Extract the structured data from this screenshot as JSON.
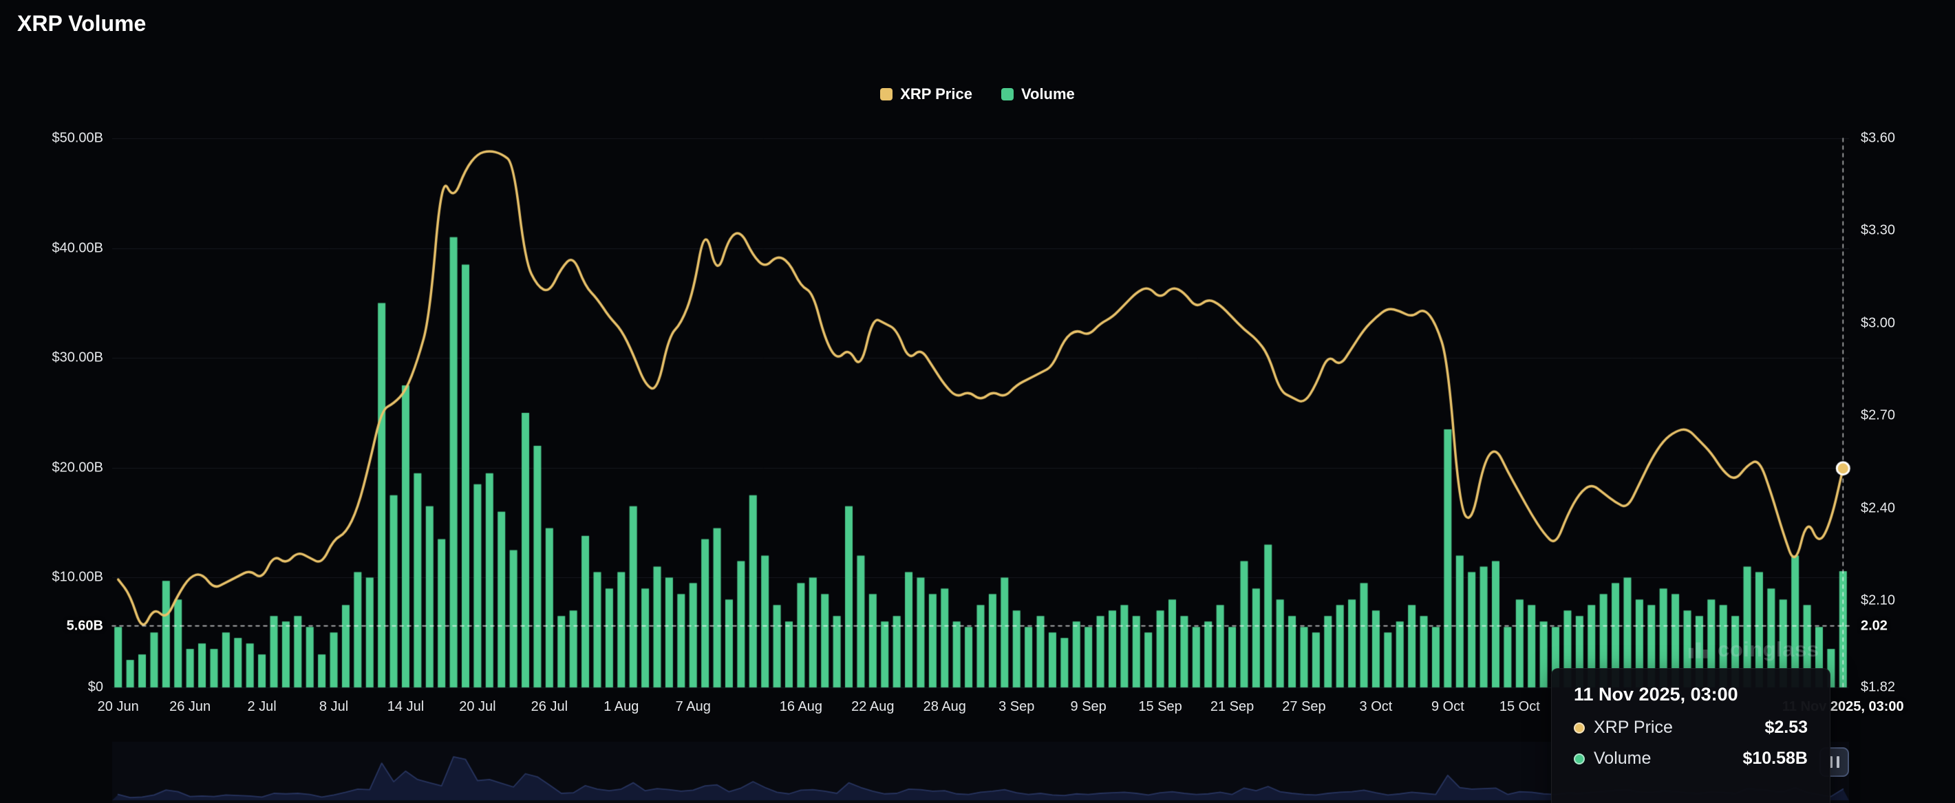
{
  "page": {
    "title": "XRP Volume",
    "background": "#050609"
  },
  "legend": {
    "items": [
      {
        "label": "XRP Price",
        "color": "#e9c26a"
      },
      {
        "label": "Volume",
        "color": "#4ccb8d"
      }
    ]
  },
  "watermark": {
    "text": "coinglass"
  },
  "tooltip": {
    "title": "11 Nov 2025, 03:00",
    "rows": [
      {
        "label": "XRP Price",
        "value": "$2.53",
        "color": "#e9c26a"
      },
      {
        "label": "Volume",
        "value": "$10.58B",
        "color": "#4ccb8d"
      }
    ]
  },
  "chart_data": {
    "type": "combo",
    "title": "XRP Volume",
    "legend_position": "top-center",
    "grid": true,
    "x": {
      "start": "20 Jun 2025",
      "end": "11 Nov 2025, 03:00",
      "interval": "daily",
      "count": 145
    },
    "x_tick_labels": [
      "20 Jun",
      "26 Jun",
      "2 Jul",
      "8 Jul",
      "14 Jul",
      "20 Jul",
      "26 Jul",
      "1 Aug",
      "7 Aug",
      "16 Aug",
      "22 Aug",
      "28 Aug",
      "3 Sep",
      "9 Sep",
      "15 Sep",
      "21 Sep",
      "27 Sep",
      "3 Oct",
      "9 Oct",
      "15 Oct"
    ],
    "x_tick_day_offsets": [
      0,
      6,
      12,
      18,
      24,
      30,
      36,
      42,
      48,
      57,
      63,
      69,
      75,
      81,
      87,
      93,
      99,
      105,
      111,
      117
    ],
    "left_axis": {
      "ticks": [
        "$0",
        "$10.00B",
        "$20.00B",
        "$30.00B",
        "$40.00B",
        "$50.00B"
      ],
      "tick_values": [
        0,
        10,
        20,
        30,
        40,
        50
      ],
      "min": 0,
      "max": 50,
      "unit": "USD billions"
    },
    "right_axis": {
      "ticks": [
        "$1.82",
        "$2.10",
        "$2.40",
        "$2.70",
        "$3.00",
        "$3.30",
        "$3.60"
      ],
      "tick_values": [
        1.82,
        2.1,
        2.4,
        2.7,
        3.0,
        3.3,
        3.6
      ],
      "min": 1.82,
      "max": 3.6,
      "unit": "USD"
    },
    "series": [
      {
        "name": "XRP Price",
        "type": "line",
        "axis": "right",
        "color": "#e9c26a",
        "values": [
          2.17,
          2.12,
          2.0,
          2.08,
          2.04,
          2.12,
          2.18,
          2.19,
          2.14,
          2.16,
          2.18,
          2.2,
          2.17,
          2.25,
          2.22,
          2.26,
          2.24,
          2.22,
          2.3,
          2.32,
          2.4,
          2.55,
          2.72,
          2.74,
          2.78,
          2.88,
          3.02,
          3.48,
          3.4,
          3.5,
          3.55,
          3.56,
          3.55,
          3.52,
          3.2,
          3.12,
          3.1,
          3.18,
          3.22,
          3.12,
          3.08,
          3.02,
          2.98,
          2.9,
          2.8,
          2.78,
          2.96,
          3.0,
          3.1,
          3.32,
          3.15,
          3.28,
          3.3,
          3.22,
          3.18,
          3.22,
          3.2,
          3.12,
          3.1,
          2.95,
          2.88,
          2.92,
          2.85,
          3.02,
          3.0,
          2.98,
          2.88,
          2.92,
          2.86,
          2.8,
          2.76,
          2.78,
          2.75,
          2.78,
          2.76,
          2.8,
          2.82,
          2.84,
          2.86,
          2.95,
          2.98,
          2.96,
          3.0,
          3.02,
          3.06,
          3.1,
          3.12,
          3.08,
          3.12,
          3.1,
          3.05,
          3.08,
          3.06,
          3.02,
          2.98,
          2.95,
          2.9,
          2.78,
          2.76,
          2.74,
          2.8,
          2.9,
          2.86,
          2.92,
          2.98,
          3.02,
          3.05,
          3.04,
          3.02,
          3.05,
          3.0,
          2.88,
          2.4,
          2.35,
          2.55,
          2.6,
          2.52,
          2.45,
          2.38,
          2.32,
          2.28,
          2.38,
          2.45,
          2.48,
          2.45,
          2.42,
          2.4,
          2.48,
          2.56,
          2.62,
          2.65,
          2.66,
          2.62,
          2.58,
          2.52,
          2.49,
          2.54,
          2.56,
          2.45,
          2.32,
          2.21,
          2.37,
          2.28,
          2.36,
          2.53
        ]
      },
      {
        "name": "Volume",
        "type": "bar",
        "axis": "left",
        "color": "#4ccb8d",
        "values": [
          5.5,
          2.5,
          3,
          5,
          9.7,
          8,
          3.5,
          4,
          3.5,
          5,
          4.5,
          4,
          3,
          6.5,
          6,
          6.5,
          5.5,
          3,
          5,
          7.5,
          10.5,
          10,
          35,
          17.5,
          27.5,
          19.5,
          16.5,
          13.5,
          41,
          38.5,
          18.5,
          19.5,
          16,
          12.5,
          25,
          22,
          14.5,
          6.5,
          7,
          13.8,
          10.5,
          9,
          10.5,
          16.5,
          9,
          11,
          10,
          8.5,
          9.5,
          13.5,
          14.5,
          8,
          11.5,
          17.5,
          12,
          7.5,
          6,
          9.5,
          10,
          8.5,
          6.5,
          16.5,
          12,
          8.5,
          6,
          6.5,
          10.5,
          10,
          8.5,
          9,
          6,
          5.5,
          7.5,
          8.5,
          10,
          7,
          5.5,
          6.5,
          5,
          4.5,
          6,
          5.5,
          6.5,
          7,
          7.5,
          6.5,
          5,
          7,
          8,
          6.5,
          5.5,
          6,
          7.5,
          5.5,
          11.5,
          9,
          13,
          8,
          6.5,
          5.5,
          5,
          6.5,
          7.5,
          8,
          9.5,
          7,
          5,
          6,
          7.5,
          6.5,
          5.5,
          23.5,
          12,
          10.5,
          11,
          11.5,
          5.5,
          8,
          7.5,
          6,
          5.5,
          7,
          6.5,
          7.5,
          8.5,
          9.5,
          10,
          8,
          7.5,
          9,
          8.5,
          7,
          6.5,
          8,
          7.5,
          6.5,
          11,
          10.5,
          9,
          8,
          12,
          7.5,
          5.5,
          3.5,
          10.58
        ]
      }
    ],
    "crosshair": {
      "x_label": "11 Nov 2025, 03:00",
      "volume_label": "5.60B",
      "volume_value": 5.6,
      "price_label": "2.02",
      "price_value": 2.02,
      "marker_price": 2.53
    }
  }
}
